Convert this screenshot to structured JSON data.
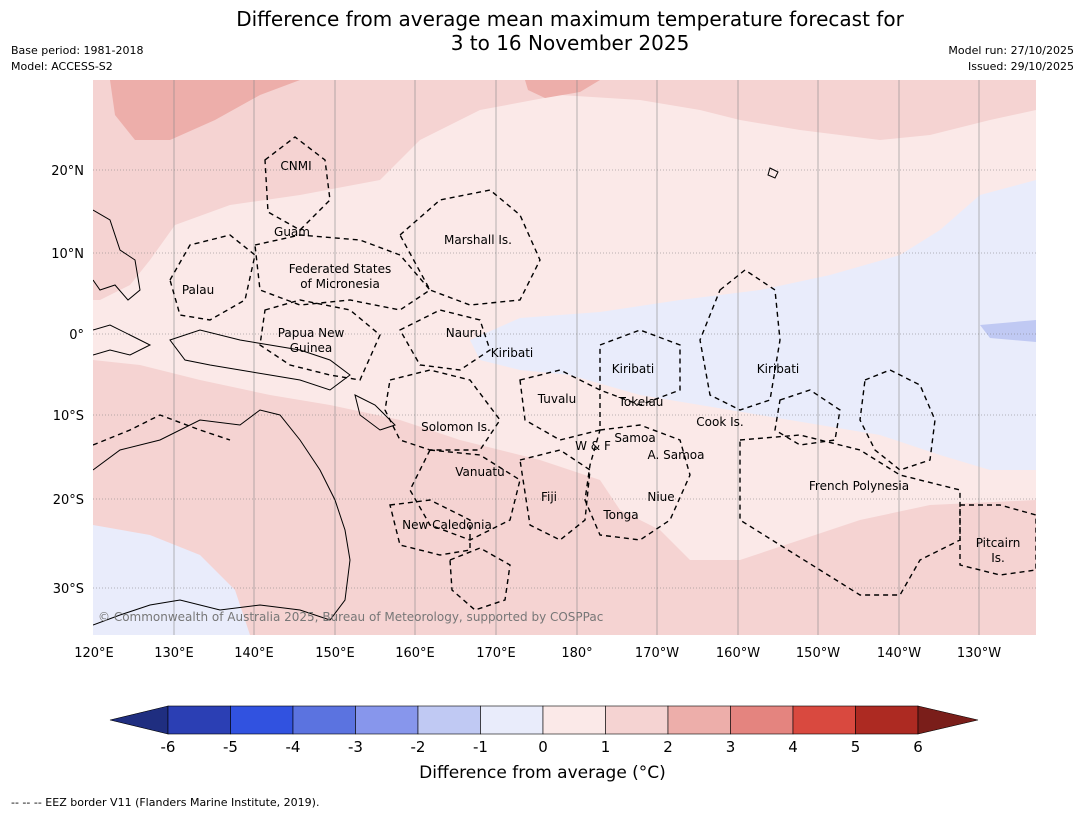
{
  "title": {
    "line1": "Difference from average mean maximum temperature forecast for",
    "line2": "3 to 16 November 2025"
  },
  "meta_left": {
    "base_period": "Base period: 1981-2018",
    "model": "Model: ACCESS-S2"
  },
  "meta_right": {
    "model_run": "Model run: 27/10/2025",
    "issued": "Issued: 29/10/2025"
  },
  "map": {
    "lon_labels": [
      "120°E",
      "130°E",
      "140°E",
      "150°E",
      "160°E",
      "170°E",
      "180°",
      "170°W",
      "160°W",
      "150°W",
      "140°W",
      "130°W"
    ],
    "lat_labels": [
      "20°N",
      "10°N",
      "0°",
      "10°S",
      "20°S",
      "30°S"
    ],
    "regions": [
      "CNMI",
      "Guam",
      "Marshall Is.",
      "Federated States",
      "of Micronesia",
      "Palau",
      "Papua New",
      "Guinea",
      "Nauru",
      "Kiribati",
      "Kiribati",
      "Kiribati",
      "Tuvalu",
      "Tokelau",
      "Solomon Is.",
      "Cook Is.",
      "Samoa",
      "W & F",
      "A. Samoa",
      "Vanuatu",
      "Fiji",
      "Niue",
      "Tonga",
      "French Polynesia",
      "New Caledonia",
      "Pitcairn",
      "Is."
    ],
    "copyright": "© Commonwealth of Australia 2025, Bureau of Meteorology, supported by COSPPac",
    "colors": {
      "anom_neg1_0": "#e9ecfb",
      "anom_0_1": "#fbe9e8",
      "anom_1_2": "#f5d3d2",
      "anom_2_3": "#edaeaa",
      "anom_neg2_neg1": "#c0c9f3"
    }
  },
  "colorbar": {
    "ticks": [
      "-6",
      "-5",
      "-4",
      "-3",
      "-2",
      "-1",
      "0",
      "1",
      "2",
      "3",
      "4",
      "5",
      "6"
    ],
    "colors": [
      "#1f2e80",
      "#2b3fb4",
      "#3152e0",
      "#5b73e0",
      "#8796ec",
      "#c0c9f3",
      "#e9ecfb",
      "#fbe9e8",
      "#f5d3d2",
      "#edaeaa",
      "#e4847f",
      "#d9493f",
      "#ad2a22",
      "#7a1e1a"
    ],
    "label": "Difference from average (°C)"
  },
  "footnote": "--  --  -- EEZ border V11 (Flanders Marine Institute, 2019)."
}
